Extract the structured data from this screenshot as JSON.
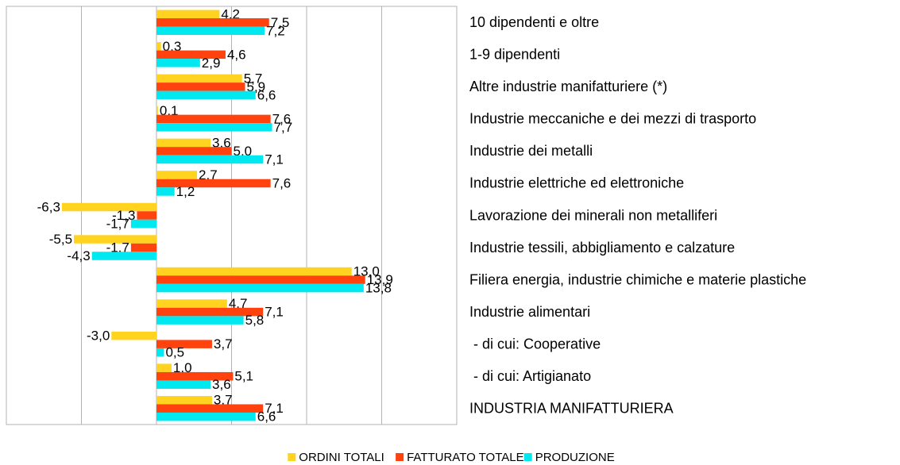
{
  "chart_data": {
    "type": "hbar",
    "categories": [
      "10 dipendenti e oltre",
      "1-9 dipendenti",
      "Altre industrie manifatturiere (*)",
      "Industrie meccaniche e dei mezzi di trasporto",
      "Industrie dei metalli",
      "Industrie elettriche ed elettroniche",
      "Lavorazione dei minerali non metalliferi",
      "Industrie tessili, abbigliamento e calzature",
      "Filiera energia, industrie chimiche e materie plastiche",
      "Industrie alimentari",
      " - di cui: Cooperative",
      " - di cui: Artigianato",
      "INDUSTRIA MANIFATTURIERA"
    ],
    "series": [
      {
        "name": "ORDINI TOTALI",
        "color": "#ffd320",
        "values": [
          4.2,
          0.3,
          5.7,
          0.1,
          3.6,
          2.7,
          -6.3,
          -5.5,
          13.0,
          4.7,
          -3.0,
          1.0,
          3.7
        ],
        "value_labels": [
          "4,2",
          "0,3",
          "5,7",
          "0,1",
          "3,6",
          "2,7",
          "-6,3",
          "-5,5",
          "13,0",
          "4,7",
          "-3,0",
          "1,0",
          "3,7"
        ]
      },
      {
        "name": "FATTURATO TOTALE",
        "color": "#ff420e",
        "values": [
          7.5,
          4.6,
          5.9,
          7.6,
          5.0,
          7.6,
          -1.3,
          -1.7,
          13.9,
          7.1,
          3.7,
          5.1,
          7.1
        ],
        "value_labels": [
          "7,5",
          "4,6",
          "5,9",
          "7,6",
          "5,0",
          "7,6",
          "-1,3",
          "-1,7",
          "13,9",
          "7,1",
          "3,7",
          "5,1",
          "7,1"
        ]
      },
      {
        "name": "PRODUZIONE",
        "color": "#00e8f0",
        "values": [
          7.2,
          2.9,
          6.6,
          7.7,
          7.1,
          1.2,
          -1.7,
          -4.3,
          13.8,
          5.8,
          0.5,
          3.6,
          6.6
        ],
        "value_labels": [
          "7,2",
          "2,9",
          "6,6",
          "7,7",
          "7,1",
          "1,2",
          "-1,7",
          "-4,3",
          "13,8",
          "5,8",
          "0,5",
          "3,6",
          "6,6"
        ]
      }
    ],
    "xlim": [
      -10,
      20
    ],
    "xticks": [
      -10,
      -5,
      0,
      5,
      10,
      15,
      20
    ],
    "grid": true
  }
}
